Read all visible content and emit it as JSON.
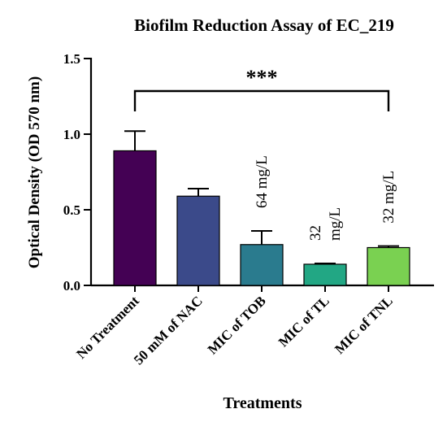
{
  "chart_data": {
    "type": "bar",
    "title": "Biofilm Reduction Assay of EC_219",
    "xlabel": "Treatments",
    "ylabel": "Optical Density (OD 570 nm)",
    "ylim": [
      0,
      1.5
    ],
    "yticks": [
      "0.0",
      "0.5",
      "1.0",
      "1.5"
    ],
    "categories": [
      "No Treatment",
      "50 mM of NAC",
      "MIC of TOB",
      "MIC of TL",
      "MIC of TNL"
    ],
    "values": [
      0.89,
      0.59,
      0.27,
      0.14,
      0.25
    ],
    "errors": [
      0.13,
      0.05,
      0.09,
      0.005,
      0.01
    ],
    "bar_colors": [
      "#440154",
      "#3b4a8a",
      "#2a7b8e",
      "#22a784",
      "#7ad151"
    ],
    "bar_labels": [
      {
        "index": 2,
        "lines": [
          "64 mg/L"
        ]
      },
      {
        "index": 3,
        "lines": [
          "32",
          "mg/L"
        ]
      },
      {
        "index": 4,
        "lines": [
          "32 mg/L"
        ]
      }
    ],
    "significance": {
      "from_index": 0,
      "to_index": 4,
      "label": "***"
    },
    "grid": false,
    "legend": "none"
  }
}
